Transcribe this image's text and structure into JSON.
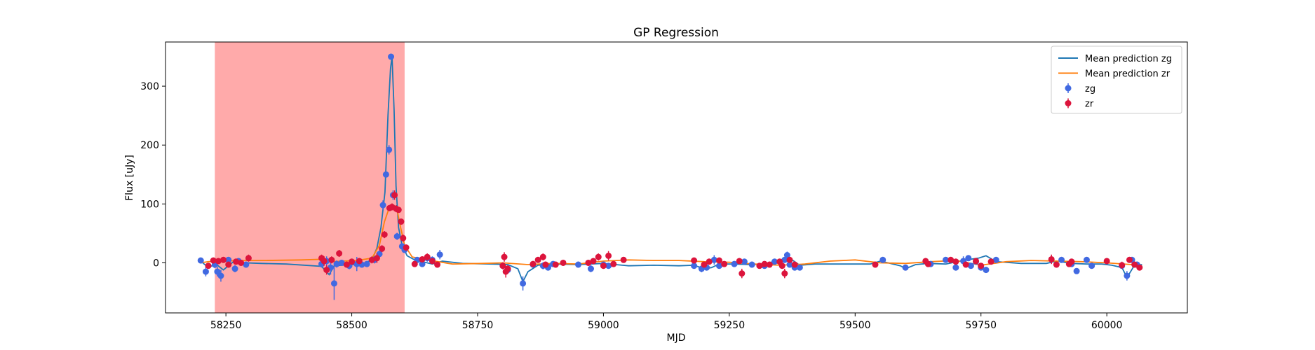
{
  "chart_data": {
    "type": "scatter",
    "title": "GP Regression",
    "xlabel": "MJD",
    "ylabel": "Flux [uJy]",
    "xlim": [
      58130,
      60160
    ],
    "ylim": [
      -85,
      375
    ],
    "xticks": [
      58250,
      58500,
      58750,
      59000,
      59250,
      59500,
      59750,
      60000
    ],
    "yticks": [
      0,
      100,
      200,
      300
    ],
    "grid": false,
    "legend_position": "top-right",
    "shaded_region": {
      "x0": 58228,
      "x1": 58605,
      "color": "#ffaaaa"
    },
    "colors": {
      "zg_line": "#1f77b4",
      "zr_line": "#ff7f0e",
      "zg_points": "#4169e1",
      "zr_points": "#dc143c"
    },
    "legend": [
      {
        "label": "Mean prediction zg",
        "kind": "line",
        "color": "#1f77b4"
      },
      {
        "label": "Mean prediction zr",
        "kind": "line",
        "color": "#ff7f0e"
      },
      {
        "label": "zg",
        "kind": "errorbar",
        "color": "#4169e1"
      },
      {
        "label": "zr",
        "kind": "errorbar",
        "color": "#dc143c"
      }
    ],
    "series": [
      {
        "name": "Mean prediction zg",
        "kind": "line",
        "x": [
          58200,
          58215,
          58230,
          58245,
          58265,
          58290,
          58320,
          58370,
          58440,
          58455,
          58465,
          58480,
          58500,
          58520,
          58540,
          58550,
          58558,
          58566,
          58572,
          58577,
          58580,
          58584,
          58588,
          58593,
          58600,
          58610,
          58625,
          58640,
          58660,
          58680,
          58720,
          58780,
          58810,
          58830,
          58840,
          58850,
          58870,
          58900,
          58950,
          59000,
          59050,
          59100,
          59150,
          59180,
          59200,
          59215,
          59230,
          59260,
          59290,
          59320,
          59350,
          59370,
          59390,
          59420,
          59480,
          59530,
          59550,
          59570,
          59590,
          59600,
          59620,
          59645,
          59680,
          59720,
          59745,
          59760,
          59780,
          59830,
          59880,
          59900,
          59930,
          59960,
          59990,
          60010,
          60030,
          60040,
          60055,
          60070
        ],
        "y": [
          3,
          -8,
          -2,
          -12,
          2,
          0,
          -1,
          -2,
          -6,
          -20,
          -5,
          -4,
          -3,
          -2,
          5,
          25,
          60,
          120,
          250,
          330,
          350,
          260,
          130,
          60,
          30,
          12,
          5,
          2,
          -2,
          3,
          -1,
          -2,
          -3,
          -10,
          -32,
          -15,
          -4,
          -2,
          -3,
          -1,
          -5,
          -4,
          -5,
          -4,
          -10,
          -8,
          -2,
          -2,
          -3,
          -2,
          5,
          8,
          -4,
          -2,
          -2,
          -2,
          3,
          -1,
          -5,
          -10,
          -3,
          -1,
          -2,
          5,
          8,
          12,
          2,
          -1,
          -1,
          3,
          -1,
          -2,
          -2,
          -4,
          -8,
          -25,
          -4,
          -3
        ]
      },
      {
        "name": "Mean prediction zr",
        "kind": "line",
        "x": [
          58200,
          58215,
          58240,
          58280,
          58330,
          58400,
          58440,
          58460,
          58480,
          58510,
          58540,
          58555,
          58565,
          58575,
          58582,
          58590,
          58597,
          58605,
          58620,
          58650,
          58700,
          58760,
          58800,
          58850,
          58900,
          58950,
          59000,
          59050,
          59100,
          59150,
          59200,
          59250,
          59300,
          59350,
          59400,
          59450,
          59500,
          59550,
          59600,
          59650,
          59700,
          59750,
          59800,
          59850,
          59900,
          59950,
          60000,
          60050,
          60070
        ],
        "y": [
          0,
          2,
          3,
          4,
          4,
          5,
          6,
          2,
          3,
          4,
          8,
          30,
          70,
          95,
          98,
          90,
          60,
          30,
          10,
          5,
          -2,
          -1,
          0,
          -3,
          -1,
          -2,
          3,
          5,
          4,
          4,
          2,
          1,
          -2,
          -4,
          -2,
          3,
          5,
          0,
          -1,
          2,
          4,
          -4,
          2,
          4,
          3,
          2,
          0,
          -3,
          -5
        ]
      },
      {
        "name": "zg",
        "kind": "errorbar",
        "x": [
          58200,
          58210,
          58228,
          58233,
          58240,
          58255,
          58268,
          58275,
          58290,
          58440,
          58450,
          58458,
          58465,
          58470,
          58480,
          58495,
          58510,
          58520,
          58530,
          58545,
          58555,
          58562,
          58568,
          58574,
          58578,
          58582,
          58590,
          58600,
          58605,
          58630,
          58640,
          58650,
          58660,
          58675,
          58800,
          58810,
          58840,
          58860,
          58880,
          58890,
          58900,
          58950,
          58975,
          59000,
          59010,
          59180,
          59195,
          59205,
          59220,
          59230,
          59260,
          59280,
          59295,
          59320,
          59340,
          59360,
          59365,
          59370,
          59380,
          59390,
          59555,
          59600,
          59650,
          59680,
          59700,
          59715,
          59725,
          59730,
          59740,
          59750,
          59760,
          59780,
          59910,
          59930,
          59940,
          59960,
          59970,
          60030,
          60040,
          60050,
          60060
        ],
        "y": [
          4,
          -15,
          -3,
          -15,
          -22,
          5,
          -10,
          3,
          -3,
          -2,
          3,
          -8,
          -35,
          -2,
          0,
          -5,
          -2,
          -3,
          -2,
          5,
          15,
          98,
          150,
          192,
          350,
          115,
          45,
          28,
          22,
          5,
          -2,
          8,
          5,
          14,
          -5,
          -12,
          -35,
          -3,
          -5,
          -8,
          -2,
          -3,
          -10,
          -3,
          -5,
          -5,
          -10,
          -8,
          5,
          -5,
          -2,
          2,
          -3,
          -5,
          2,
          5,
          13,
          -3,
          -8,
          -8,
          5,
          -8,
          -2,
          5,
          -8,
          3,
          8,
          -5,
          2,
          -8,
          -12,
          5,
          5,
          -2,
          -14,
          5,
          -5,
          -5,
          -22,
          5,
          -3
        ],
        "err": [
          5,
          8,
          6,
          8,
          10,
          5,
          6,
          5,
          5,
          6,
          8,
          12,
          28,
          6,
          5,
          6,
          12,
          5,
          5,
          6,
          6,
          8,
          5,
          8,
          5,
          8,
          6,
          5,
          5,
          5,
          5,
          6,
          6,
          8,
          5,
          6,
          12,
          5,
          6,
          5,
          5,
          5,
          6,
          5,
          5,
          5,
          6,
          5,
          8,
          5,
          5,
          5,
          5,
          5,
          5,
          5,
          6,
          5,
          5,
          5,
          5,
          5,
          5,
          5,
          5,
          8,
          5,
          5,
          5,
          5,
          5,
          5,
          5,
          5,
          5,
          5,
          5,
          5,
          8,
          5,
          5
        ]
      },
      {
        "name": "zr",
        "kind": "errorbar",
        "x": [
          58215,
          58225,
          58235,
          58245,
          58255,
          58270,
          58280,
          58295,
          58440,
          58445,
          58450,
          58460,
          58475,
          58490,
          58500,
          58515,
          58540,
          58550,
          58560,
          58565,
          58575,
          58580,
          58585,
          58588,
          58593,
          58598,
          58602,
          58608,
          58625,
          58640,
          58650,
          58660,
          58670,
          58800,
          58803,
          58806,
          58810,
          58860,
          58870,
          58880,
          58885,
          58905,
          58920,
          58970,
          58980,
          58990,
          59000,
          59010,
          59020,
          59040,
          59180,
          59200,
          59210,
          59230,
          59240,
          59270,
          59275,
          59310,
          59320,
          59330,
          59350,
          59355,
          59360,
          59370,
          59380,
          59540,
          59640,
          59645,
          59690,
          59700,
          59720,
          59740,
          59750,
          59770,
          59890,
          59900,
          59925,
          59930,
          60000,
          60030,
          60045,
          60055,
          60065
        ],
        "y": [
          -5,
          4,
          3,
          5,
          -3,
          2,
          0,
          8,
          8,
          3,
          -12,
          5,
          16,
          -3,
          2,
          3,
          5,
          8,
          24,
          48,
          93,
          95,
          115,
          92,
          90,
          70,
          42,
          26,
          -2,
          6,
          10,
          3,
          -3,
          -5,
          10,
          -15,
          -10,
          -2,
          5,
          10,
          -3,
          -3,
          0,
          0,
          3,
          10,
          -5,
          12,
          -2,
          5,
          4,
          -3,
          2,
          4,
          -2,
          3,
          -18,
          -5,
          -2,
          -3,
          2,
          -5,
          -18,
          5,
          -3,
          -3,
          3,
          -2,
          5,
          2,
          -3,
          3,
          -5,
          2,
          6,
          -3,
          -2,
          2,
          3,
          -4,
          5,
          -3,
          -8
        ],
        "err": [
          5,
          4,
          5,
          4,
          5,
          4,
          5,
          6,
          6,
          8,
          8,
          6,
          6,
          5,
          5,
          5,
          6,
          8,
          6,
          6,
          5,
          6,
          8,
          6,
          5,
          5,
          6,
          5,
          5,
          5,
          6,
          5,
          5,
          6,
          8,
          10,
          6,
          5,
          5,
          6,
          5,
          5,
          5,
          5,
          5,
          6,
          5,
          8,
          5,
          5,
          5,
          5,
          5,
          5,
          5,
          5,
          8,
          5,
          5,
          5,
          5,
          5,
          8,
          5,
          5,
          5,
          5,
          5,
          5,
          5,
          5,
          5,
          5,
          5,
          8,
          5,
          5,
          5,
          5,
          6,
          5,
          5,
          5
        ]
      }
    ]
  }
}
